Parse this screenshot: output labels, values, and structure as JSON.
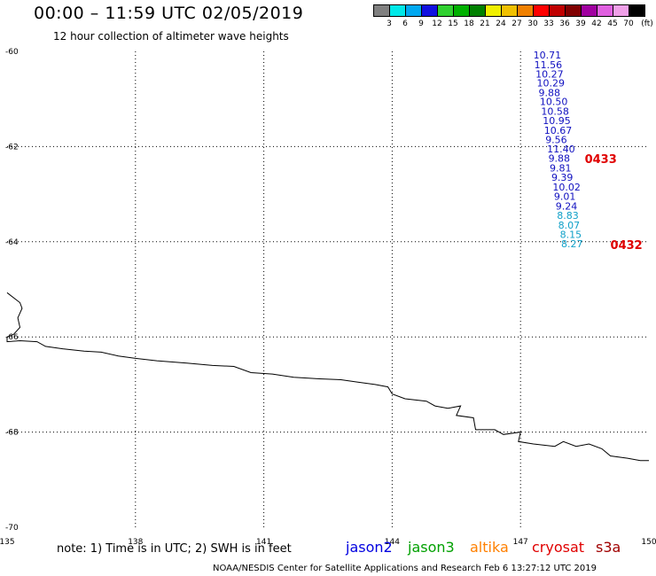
{
  "header": {
    "title": "00:00 – 11:59 UTC 02/05/2019",
    "subtitle": "12 hour collection of altimeter wave heights"
  },
  "legend": {
    "unit": "(ft)",
    "items": [
      {
        "label": "3",
        "color": "#808080"
      },
      {
        "label": "6",
        "color": "#00e8e8"
      },
      {
        "label": "9",
        "color": "#00a8f0"
      },
      {
        "label": "12",
        "color": "#1010e0"
      },
      {
        "label": "15",
        "color": "#30d030"
      },
      {
        "label": "18",
        "color": "#00b000"
      },
      {
        "label": "21",
        "color": "#008000"
      },
      {
        "label": "24",
        "color": "#f0f000"
      },
      {
        "label": "27",
        "color": "#f0c000"
      },
      {
        "label": "30",
        "color": "#f08000"
      },
      {
        "label": "33",
        "color": "#ff0000"
      },
      {
        "label": "36",
        "color": "#c00000"
      },
      {
        "label": "39",
        "color": "#800000"
      },
      {
        "label": "42",
        "color": "#a000a0"
      },
      {
        "label": "45",
        "color": "#e060e0"
      },
      {
        "label": "70",
        "color": "#f0a0e8"
      },
      {
        "label": "",
        "color": "#000000"
      }
    ]
  },
  "map": {
    "lon_range": [
      135,
      150
    ],
    "lat_range": [
      -70,
      -60
    ],
    "lon_ticks": [
      "135",
      "138",
      "141",
      "144",
      "147",
      "150"
    ],
    "lat_ticks": [
      "-60",
      "-62",
      "-64",
      "-66",
      "-68",
      "-70"
    ],
    "coastline_lonlat": [
      [
        135.0,
        -65.07
      ],
      [
        135.3,
        -65.28
      ],
      [
        135.35,
        -65.4
      ],
      [
        135.25,
        -65.6
      ],
      [
        135.3,
        -65.8
      ],
      [
        135.15,
        -65.95
      ],
      [
        135.0,
        -66.0
      ],
      [
        135.0,
        -66.1
      ],
      [
        135.3,
        -66.08
      ],
      [
        135.7,
        -66.1
      ],
      [
        135.9,
        -66.2
      ],
      [
        136.3,
        -66.25
      ],
      [
        136.8,
        -66.3
      ],
      [
        137.2,
        -66.32
      ],
      [
        137.6,
        -66.4
      ],
      [
        138.0,
        -66.45
      ],
      [
        138.5,
        -66.5
      ],
      [
        139.2,
        -66.55
      ],
      [
        139.8,
        -66.6
      ],
      [
        140.3,
        -66.62
      ],
      [
        140.7,
        -66.75
      ],
      [
        141.2,
        -66.78
      ],
      [
        141.7,
        -66.85
      ],
      [
        142.3,
        -66.88
      ],
      [
        142.8,
        -66.9
      ],
      [
        143.2,
        -66.95
      ],
      [
        143.6,
        -67.0
      ],
      [
        143.9,
        -67.05
      ],
      [
        144.0,
        -67.2
      ],
      [
        144.3,
        -67.3
      ],
      [
        144.8,
        -67.35
      ],
      [
        145.0,
        -67.45
      ],
      [
        145.3,
        -67.5
      ],
      [
        145.6,
        -67.45
      ],
      [
        145.5,
        -67.65
      ],
      [
        145.9,
        -67.7
      ],
      [
        145.95,
        -67.95
      ],
      [
        146.4,
        -67.95
      ],
      [
        146.6,
        -68.05
      ],
      [
        147.0,
        -68.0
      ],
      [
        146.95,
        -68.2
      ],
      [
        147.3,
        -68.25
      ],
      [
        147.8,
        -68.3
      ],
      [
        148.0,
        -68.2
      ],
      [
        148.3,
        -68.3
      ],
      [
        148.6,
        -68.25
      ],
      [
        148.9,
        -68.35
      ],
      [
        149.1,
        -68.5
      ],
      [
        149.5,
        -68.55
      ],
      [
        149.8,
        -68.6
      ],
      [
        150.0,
        -68.6
      ]
    ]
  },
  "observations": [
    {
      "lon": 147.3,
      "lat": -60.15,
      "swh": "10.71",
      "color": "#1010c0"
    },
    {
      "lon": 147.32,
      "lat": -60.35,
      "swh": "11.56",
      "color": "#1010c0"
    },
    {
      "lon": 147.35,
      "lat": -60.55,
      "swh": "10.27",
      "color": "#1010c0"
    },
    {
      "lon": 147.38,
      "lat": -60.74,
      "swh": "10.29",
      "color": "#1010c0"
    },
    {
      "lon": 147.42,
      "lat": -60.94,
      "swh": "9.88",
      "color": "#1010c0"
    },
    {
      "lon": 147.45,
      "lat": -61.13,
      "swh": "10.50",
      "color": "#1010c0"
    },
    {
      "lon": 147.48,
      "lat": -61.33,
      "swh": "10.58",
      "color": "#1010c0"
    },
    {
      "lon": 147.52,
      "lat": -61.53,
      "swh": "10.95",
      "color": "#1010c0"
    },
    {
      "lon": 147.55,
      "lat": -61.73,
      "swh": "10.67",
      "color": "#1010c0"
    },
    {
      "lon": 147.58,
      "lat": -61.93,
      "swh": "9.56",
      "color": "#1010c0"
    },
    {
      "lon": 147.62,
      "lat": -62.12,
      "swh": "11.40",
      "color": "#1010c0"
    },
    {
      "lon": 147.65,
      "lat": -62.32,
      "swh": "9.88",
      "color": "#1010c0"
    },
    {
      "lon": 147.68,
      "lat": -62.52,
      "swh": "9.81",
      "color": "#1010c0"
    },
    {
      "lon": 147.72,
      "lat": -62.72,
      "swh": "9.39",
      "color": "#1010c0"
    },
    {
      "lon": 147.75,
      "lat": -62.92,
      "swh": "10.02",
      "color": "#1010c0"
    },
    {
      "lon": 147.78,
      "lat": -63.12,
      "swh": "9.01",
      "color": "#1010c0"
    },
    {
      "lon": 147.82,
      "lat": -63.32,
      "swh": "9.24",
      "color": "#1010c0"
    },
    {
      "lon": 147.85,
      "lat": -63.52,
      "swh": "8.83",
      "color": "#10a0c8"
    },
    {
      "lon": 147.88,
      "lat": -63.72,
      "swh": "8.07",
      "color": "#10a0c8"
    },
    {
      "lon": 147.92,
      "lat": -63.92,
      "swh": "8.15",
      "color": "#10a0c8"
    },
    {
      "lon": 147.95,
      "lat": -64.12,
      "swh": "8.27",
      "color": "#10a0c8"
    }
  ],
  "pass_labels": [
    {
      "lon": 148.5,
      "lat": -62.35,
      "text": "0433"
    },
    {
      "lon": 149.1,
      "lat": -64.15,
      "text": "0432"
    }
  ],
  "footer": {
    "note": "note: 1) Time is in UTC; 2) SWH is in feet",
    "satellites": [
      {
        "name": "jason2",
        "color": "#0000e0"
      },
      {
        "name": "jason3",
        "color": "#00a000"
      },
      {
        "name": "altika",
        "color": "#ff8000"
      },
      {
        "name": "cryosat",
        "color": "#e00000"
      },
      {
        "name": "s3a",
        "color": "#a00000"
      }
    ],
    "credit": "NOAA/NESDIS Center for Satellite Applications and Research    Feb  6 13:27:12 UTC 2019"
  }
}
